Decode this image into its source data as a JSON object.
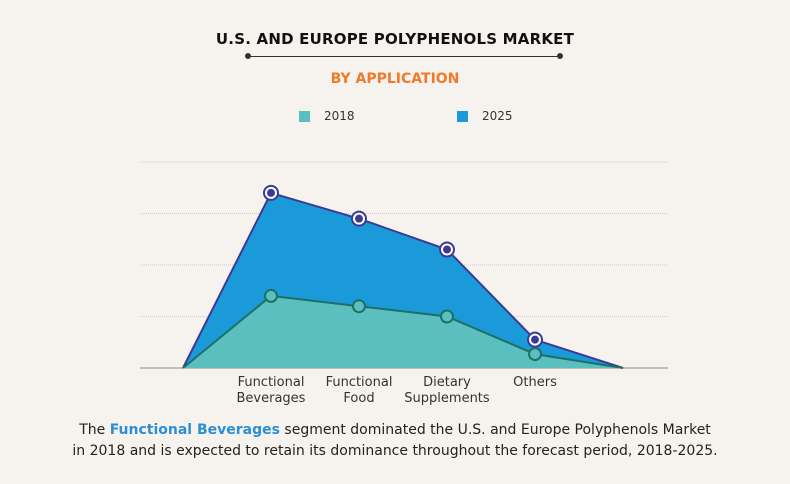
{
  "header": {
    "title": "U.S. AND EUROPE POLYPHENOLS MARKET",
    "subtitle": "BY APPLICATION"
  },
  "caption": {
    "prefix": "The ",
    "highlight": "Functional Beverages",
    "middle": " segment dominated the U.S. and Europe Polyphenols Market",
    "line2": "in 2018 and is expected to retain its dominance throughout the forecast period, 2018-2025."
  },
  "colors": {
    "series_2018": "#5bbfc0",
    "series_2025": "#1a9ad9",
    "line_2025": "#3b3a94",
    "line_2018": "#1f6f63",
    "accent": "#f07a2a"
  },
  "chart_data": {
    "type": "area",
    "categories": [
      "Functional\nBeverages",
      "Functional\nFood",
      "Dietary\nSupplements",
      "Others"
    ],
    "series": [
      {
        "name": "2018",
        "values": [
          1.4,
          1.2,
          1.0,
          0.27
        ]
      },
      {
        "name": "2025",
        "values": [
          3.4,
          2.9,
          2.3,
          0.55
        ]
      }
    ],
    "ylim": [
      0,
      4
    ],
    "grid": true,
    "legend": "top-center"
  }
}
